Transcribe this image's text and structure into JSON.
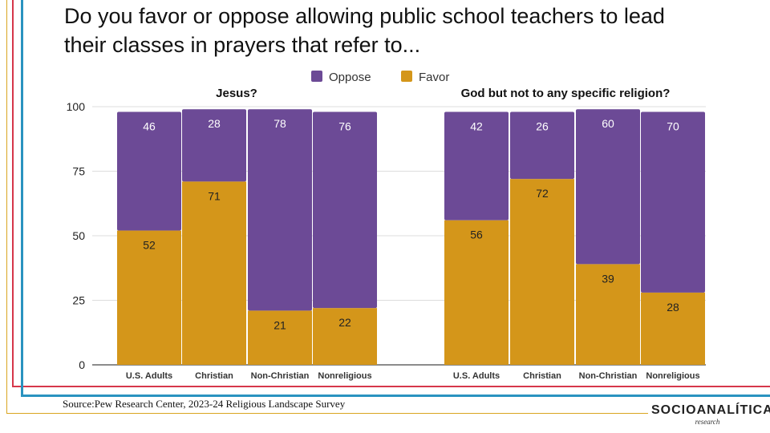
{
  "chart_data": {
    "type": "bar",
    "stacked": true,
    "title": "Do you favor or oppose allowing public school teachers to lead their classes in prayers that refer to...",
    "legend": [
      "Oppose",
      "Favor"
    ],
    "legend_placement": "top-center",
    "colors": {
      "Oppose": "#6c4a96",
      "Favor": "#d4961a"
    },
    "ylim": [
      0,
      100
    ],
    "yticks": [
      0,
      25,
      50,
      75,
      100
    ],
    "groups": [
      {
        "label": "Jesus?",
        "categories": [
          "U.S. Adults",
          "Christian",
          "Non-Christian",
          "Nonreligious"
        ],
        "series": [
          {
            "name": "Favor",
            "values": [
              52,
              71,
              21,
              22
            ]
          },
          {
            "name": "Oppose",
            "values": [
              46,
              28,
              78,
              76
            ]
          }
        ]
      },
      {
        "label": "God but not to any specific religion?",
        "categories": [
          "U.S. Adults",
          "Christian",
          "Non-Christian",
          "Nonreligious"
        ],
        "series": [
          {
            "name": "Favor",
            "values": [
              56,
              72,
              39,
              28
            ]
          },
          {
            "name": "Oppose",
            "values": [
              42,
              26,
              60,
              70
            ]
          }
        ]
      }
    ]
  },
  "source": "Source:Pew Research Center, 2023-24 Religious Landscape Survey",
  "logo": {
    "name": "SOCIOANALÍTICA",
    "sub": "research"
  }
}
